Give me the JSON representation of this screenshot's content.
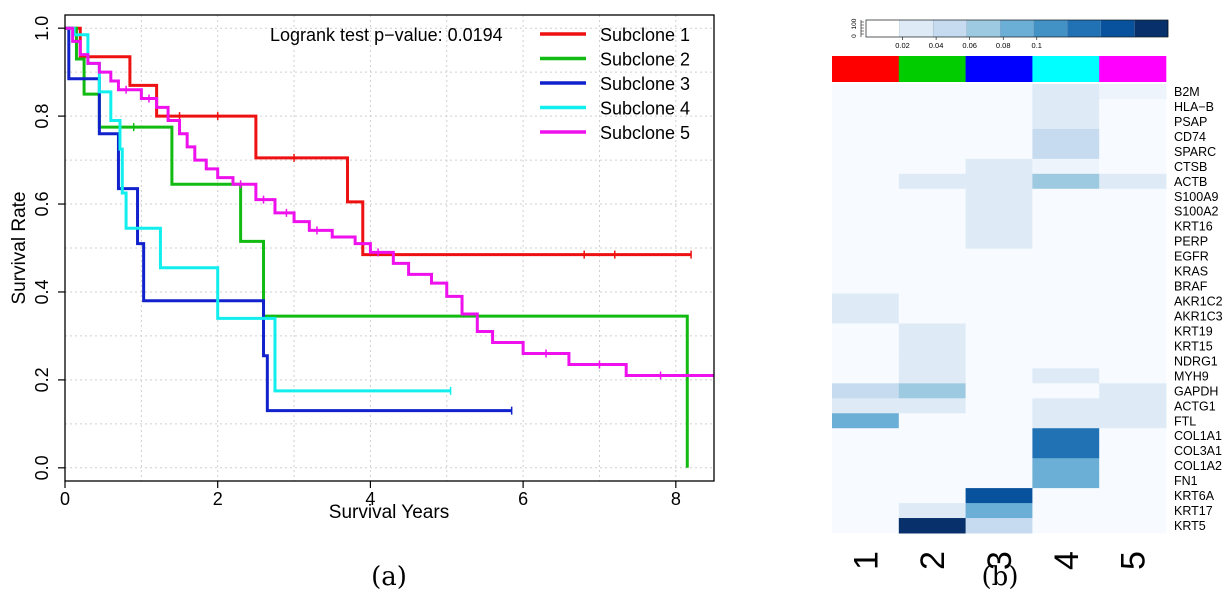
{
  "chart_data": [
    {
      "type": "line",
      "subtype": "kaplan-meier",
      "panel_label": "(a)",
      "xlabel": "Survival Years",
      "ylabel": "Survival Rate",
      "annotation": "Logrank test p−value: 0.0194",
      "xlim": [
        0,
        8.5
      ],
      "ylim": [
        -0.03,
        1.03
      ],
      "xticks": [
        "0",
        "2",
        "4",
        "6",
        "8"
      ],
      "xtick_values": [
        0,
        2,
        4,
        6,
        8
      ],
      "yticks": [
        "0.0",
        "0.2",
        "0.4",
        "0.6",
        "0.8",
        "1.0"
      ],
      "ytick_values": [
        0,
        0.2,
        0.4,
        0.6,
        0.8,
        1.0
      ],
      "grid": true,
      "legend_position": "top-right",
      "series": [
        {
          "name": "Subclone 1",
          "color": "#ee1111",
          "steps": [
            [
              0,
              1.0
            ],
            [
              0.2,
              0.935
            ],
            [
              0.85,
              0.87
            ],
            [
              1.2,
              0.8
            ],
            [
              2.5,
              0.705
            ],
            [
              3.7,
              0.605
            ],
            [
              3.9,
              0.485
            ],
            [
              8.2,
              0.485
            ]
          ],
          "censors": [
            [
              1.5,
              0.8
            ],
            [
              2.0,
              0.8
            ],
            [
              3.0,
              0.705
            ],
            [
              6.8,
              0.485
            ],
            [
              7.2,
              0.485
            ],
            [
              8.2,
              0.485
            ]
          ]
        },
        {
          "name": "Subclone 2",
          "color": "#11bb11",
          "steps": [
            [
              0,
              1.0
            ],
            [
              0.15,
              0.93
            ],
            [
              0.25,
              0.85
            ],
            [
              0.45,
              0.775
            ],
            [
              1.4,
              0.645
            ],
            [
              2.3,
              0.515
            ],
            [
              2.6,
              0.345
            ],
            [
              8.15,
              0.345
            ],
            [
              8.15,
              0.0
            ]
          ],
          "censors": [
            [
              0.9,
              0.775
            ]
          ]
        },
        {
          "name": "Subclone 3",
          "color": "#1122cc",
          "steps": [
            [
              0,
              1.0
            ],
            [
              0.05,
              0.885
            ],
            [
              0.45,
              0.76
            ],
            [
              0.7,
              0.635
            ],
            [
              0.95,
              0.51
            ],
            [
              1.03,
              0.38
            ],
            [
              2.6,
              0.255
            ],
            [
              2.65,
              0.13
            ],
            [
              5.85,
              0.13
            ]
          ],
          "censors": [
            [
              5.85,
              0.13
            ]
          ]
        },
        {
          "name": "Subclone 4",
          "color": "#11eeee",
          "steps": [
            [
              0,
              1.0
            ],
            [
              0.12,
              0.985
            ],
            [
              0.3,
              0.92
            ],
            [
              0.45,
              0.855
            ],
            [
              0.6,
              0.79
            ],
            [
              0.72,
              0.725
            ],
            [
              0.75,
              0.625
            ],
            [
              0.8,
              0.545
            ],
            [
              1.25,
              0.455
            ],
            [
              2.0,
              0.34
            ],
            [
              2.75,
              0.175
            ],
            [
              5.05,
              0.175
            ]
          ],
          "censors": [
            [
              5.05,
              0.175
            ]
          ]
        },
        {
          "name": "Subclone 5",
          "color": "#ee11ee",
          "steps": [
            [
              0,
              1.0
            ],
            [
              0.1,
              0.97
            ],
            [
              0.2,
              0.94
            ],
            [
              0.3,
              0.92
            ],
            [
              0.45,
              0.9
            ],
            [
              0.6,
              0.88
            ],
            [
              0.7,
              0.86
            ],
            [
              1.0,
              0.84
            ],
            [
              1.2,
              0.82
            ],
            [
              1.35,
              0.79
            ],
            [
              1.5,
              0.76
            ],
            [
              1.6,
              0.73
            ],
            [
              1.7,
              0.7
            ],
            [
              1.85,
              0.68
            ],
            [
              2.0,
              0.66
            ],
            [
              2.2,
              0.645
            ],
            [
              2.5,
              0.61
            ],
            [
              2.75,
              0.58
            ],
            [
              3.0,
              0.56
            ],
            [
              3.2,
              0.54
            ],
            [
              3.5,
              0.525
            ],
            [
              3.8,
              0.51
            ],
            [
              4.0,
              0.49
            ],
            [
              4.3,
              0.465
            ],
            [
              4.5,
              0.44
            ],
            [
              4.8,
              0.42
            ],
            [
              5.0,
              0.39
            ],
            [
              5.2,
              0.35
            ],
            [
              5.4,
              0.31
            ],
            [
              5.6,
              0.285
            ],
            [
              6.0,
              0.26
            ],
            [
              6.6,
              0.235
            ],
            [
              7.35,
              0.21
            ],
            [
              8.5,
              0.21
            ]
          ],
          "censors": [
            [
              0.8,
              0.86
            ],
            [
              1.1,
              0.84
            ],
            [
              2.3,
              0.645
            ],
            [
              2.6,
              0.61
            ],
            [
              2.9,
              0.58
            ],
            [
              3.3,
              0.54
            ],
            [
              4.1,
              0.49
            ],
            [
              6.3,
              0.26
            ],
            [
              7.0,
              0.235
            ],
            [
              7.8,
              0.21
            ]
          ]
        }
      ]
    },
    {
      "type": "heatmap",
      "panel_label": "(b)",
      "colorbar_ticks": [
        "0.02",
        "0.04",
        "0.06",
        "0.08",
        "0.1"
      ],
      "colorbar_count_label": [
        "100",
        "0"
      ],
      "colorbar_colors": [
        "#ffffff",
        "#deebf7",
        "#c6dbef",
        "#9ecae1",
        "#6baed6",
        "#4292c6",
        "#2171b5",
        "#08519c",
        "#08306b"
      ],
      "columns": [
        "1",
        "2",
        "3",
        "4",
        "5"
      ],
      "column_colors": [
        "#ff0000",
        "#00cc00",
        "#0000ff",
        "#00ffff",
        "#ff00ff"
      ],
      "rows": [
        "B2M",
        "HLA−B",
        "PSAP",
        "CD74",
        "SPARC",
        "CTSB",
        "ACTB",
        "S100A9",
        "S100A2",
        "KRT16",
        "PERP",
        "EGFR",
        "KRAS",
        "BRAF",
        "AKR1C2",
        "AKR1C3",
        "KRT19",
        "KRT15",
        "NDRG1",
        "MYH9",
        "GAPDH",
        "ACTG1",
        "FTL",
        "COL1A1",
        "COL3A1",
        "COL1A2",
        "FN1",
        "KRT6A",
        "KRT17",
        "KRT5"
      ],
      "values": [
        [
          0.005,
          0.005,
          0.005,
          0.02,
          0.015
        ],
        [
          0.005,
          0.005,
          0.005,
          0.02,
          0.005
        ],
        [
          0.005,
          0.005,
          0.005,
          0.02,
          0.005
        ],
        [
          0.005,
          0.005,
          0.005,
          0.04,
          0.005
        ],
        [
          0.005,
          0.005,
          0.005,
          0.04,
          0.005
        ],
        [
          0.005,
          0.005,
          0.02,
          0.015,
          0.005
        ],
        [
          0.005,
          0.02,
          0.02,
          0.06,
          0.02
        ],
        [
          0.005,
          0.005,
          0.02,
          0.005,
          0.005
        ],
        [
          0.005,
          0.005,
          0.02,
          0.005,
          0.005
        ],
        [
          0.005,
          0.005,
          0.02,
          0.005,
          0.005
        ],
        [
          0.005,
          0.005,
          0.02,
          0.005,
          0.005
        ],
        [
          0.005,
          0.005,
          0.005,
          0.005,
          0.005
        ],
        [
          0.005,
          0.005,
          0.005,
          0.005,
          0.005
        ],
        [
          0.005,
          0.005,
          0.005,
          0.005,
          0.005
        ],
        [
          0.02,
          0.005,
          0.005,
          0.005,
          0.005
        ],
        [
          0.02,
          0.005,
          0.005,
          0.005,
          0.005
        ],
        [
          0.005,
          0.02,
          0.005,
          0.005,
          0.005
        ],
        [
          0.005,
          0.02,
          0.005,
          0.005,
          0.005
        ],
        [
          0.005,
          0.02,
          0.005,
          0.005,
          0.005
        ],
        [
          0.005,
          0.02,
          0.005,
          0.02,
          0.005
        ],
        [
          0.035,
          0.05,
          0.005,
          0.0,
          0.02
        ],
        [
          0.02,
          0.02,
          0.005,
          0.02,
          0.02
        ],
        [
          0.07,
          0.005,
          0.005,
          0.02,
          0.02
        ],
        [
          0.005,
          0.005,
          0.005,
          0.085,
          0.005
        ],
        [
          0.005,
          0.005,
          0.005,
          0.085,
          0.005
        ],
        [
          0.005,
          0.005,
          0.005,
          0.07,
          0.005
        ],
        [
          0.005,
          0.005,
          0.005,
          0.07,
          0.005
        ],
        [
          0.005,
          0.005,
          0.1,
          0.005,
          0.005
        ],
        [
          0.005,
          0.02,
          0.07,
          0.005,
          0.005
        ],
        [
          0.005,
          0.115,
          0.04,
          0.005,
          0.005
        ]
      ]
    }
  ]
}
